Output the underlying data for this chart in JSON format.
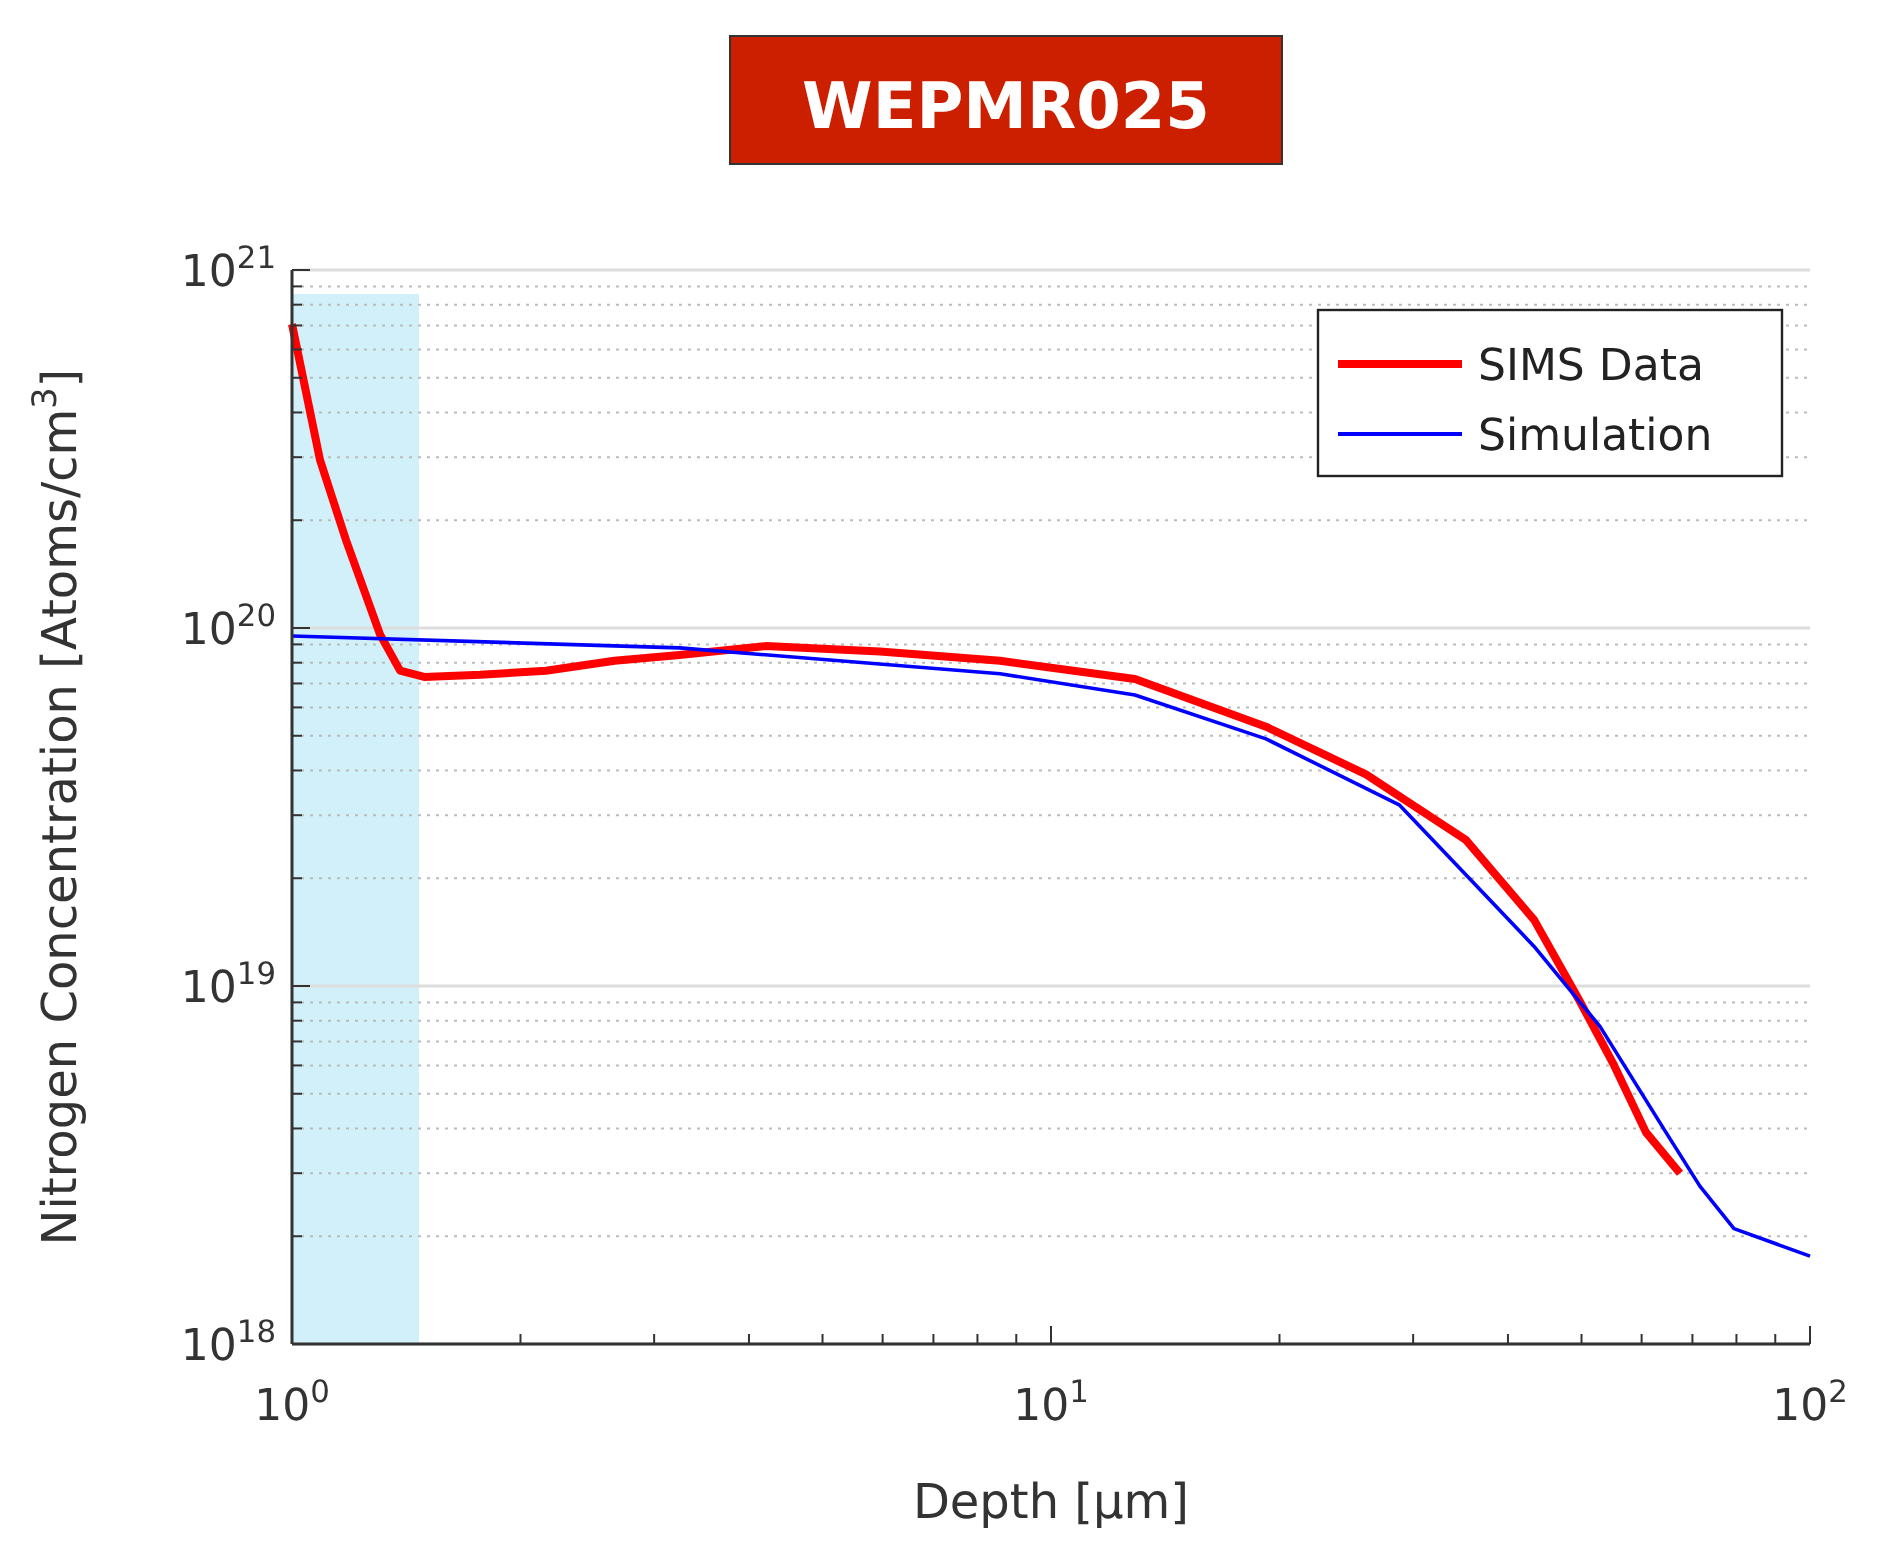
{
  "chart_data": {
    "type": "line",
    "title": "WEPMR025",
    "xlabel": "Depth [μm]",
    "ylabel": "Nitrogen Concentration [Atoms/cm$^{3}$]",
    "log": "xy",
    "grid": "y",
    "legend": "top right",
    "line_style": "solid",
    "marker": "none",
    "xlim": [
      1,
      100
    ],
    "ylim": [
      1e+18,
      1e+21
    ],
    "xticks": [
      {
        "value": 1,
        "label": "10$^{0}$"
      },
      {
        "value": 2,
        "label": null
      },
      {
        "value": 3,
        "label": null
      },
      {
        "value": 4,
        "label": null
      },
      {
        "value": 5,
        "label": null
      },
      {
        "value": 6,
        "label": null
      },
      {
        "value": 7,
        "label": null
      },
      {
        "value": 8,
        "label": null
      },
      {
        "value": 9,
        "label": null
      },
      {
        "value": 10,
        "label": "10$^{1}$"
      },
      {
        "value": 20,
        "label": null
      },
      {
        "value": 30,
        "label": null
      },
      {
        "value": 40,
        "label": null
      },
      {
        "value": 50,
        "label": null
      },
      {
        "value": 60,
        "label": null
      },
      {
        "value": 70,
        "label": null
      },
      {
        "value": 80,
        "label": null
      },
      {
        "value": 90,
        "label": null
      },
      {
        "value": 100,
        "label": "10$^{2}$"
      }
    ],
    "yticks": [
      {
        "value": 1e+18,
        "label": "10$^{18}$"
      },
      {
        "value": 2e+18,
        "label": null
      },
      {
        "value": 3e+18,
        "label": null
      },
      {
        "value": 4e+18,
        "label": null
      },
      {
        "value": 5e+18,
        "label": null
      },
      {
        "value": 6e+18,
        "label": null
      },
      {
        "value": 7e+18,
        "label": null
      },
      {
        "value": 8e+18,
        "label": null
      },
      {
        "value": 9e+18,
        "label": null
      },
      {
        "value": 1e+19,
        "label": "10$^{19}$"
      },
      {
        "value": 2e+19,
        "label": null
      },
      {
        "value": 3e+19,
        "label": null
      },
      {
        "value": 4e+19,
        "label": null
      },
      {
        "value": 5e+19,
        "label": null
      },
      {
        "value": 6e+19,
        "label": null
      },
      {
        "value": 7e+19,
        "label": null
      },
      {
        "value": 8e+19,
        "label": null
      },
      {
        "value": 9e+19,
        "label": null
      },
      {
        "value": 1e+20,
        "label": "10$^{20}$"
      },
      {
        "value": 2e+20,
        "label": null
      },
      {
        "value": 3e+20,
        "label": null
      },
      {
        "value": 4e+20,
        "label": null
      },
      {
        "value": 5e+20,
        "label": null
      },
      {
        "value": 6e+20,
        "label": null
      },
      {
        "value": 7e+20,
        "label": null
      },
      {
        "value": 8e+20,
        "label": null
      },
      {
        "value": 9e+20,
        "label": null
      },
      {
        "value": 1e+21,
        "label": "10$^{21}$"
      }
    ],
    "bands": [
      {
        "axis": "x",
        "from": 1,
        "to": 1.47,
        "color": "#d2f0fa"
      }
    ],
    "series": [
      {
        "name": "SIMS Data",
        "color": "#ff0000",
        "x": [
          1,
          1.089,
          1.178,
          1.306,
          1.388,
          1.493,
          1.77,
          2.16,
          2.66,
          3.24,
          4.21,
          5.95,
          8.57,
          12.9,
          19.2,
          26,
          35.2,
          43.3,
          49.7,
          55.2,
          60.8,
          67.4
        ],
        "values": [
          7.06e+20,
          2.94e+20,
          1.76e+20,
          9.6e+19,
          7.6e+19,
          7.3e+19,
          7.4e+19,
          7.6e+19,
          8.1e+19,
          8.4e+19,
          8.9e+19,
          8.6e+19,
          8.1e+19,
          7.2e+19,
          5.3e+19,
          3.9e+19,
          2.56e+19,
          1.53e+19,
          9.1e+18,
          6e+18,
          3.9e+18,
          3e+18
        ]
      },
      {
        "name": "Simulation",
        "color": "#0000ff",
        "x": [
          1,
          3.24,
          8.57,
          12.9,
          19.2,
          28.8,
          43.3,
          52.9,
          64.6,
          71.6,
          79.4,
          100
        ],
        "values": [
          9.5e+19,
          8.8e+19,
          7.45e+19,
          6.5e+19,
          4.9e+19,
          3.2e+19,
          1.29e+19,
          7.7e+18,
          3.9e+18,
          2.76e+18,
          2.1e+18,
          1.76e+18
        ]
      }
    ]
  }
}
